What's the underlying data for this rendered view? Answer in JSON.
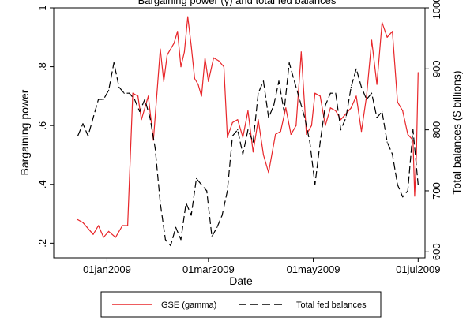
{
  "chart_data": {
    "type": "line",
    "title": "Bargaining power (γ) and total fed balances",
    "xlabel": "Date",
    "ylabel_left": "Bargaining power",
    "ylabel_right": "Total balances ($ billions)",
    "x_ticks": [
      {
        "date": "2009-01-01",
        "label": "01jan2009"
      },
      {
        "date": "2009-03-01",
        "label": "01mar2009"
      },
      {
        "date": "2009-05-01",
        "label": "01may2009"
      },
      {
        "date": "2009-07-01",
        "label": "01jul2009"
      }
    ],
    "x_range": [
      "2008-12-01",
      "2009-07-05"
    ],
    "y_left": {
      "min": 0.15,
      "max": 1.0,
      "ticks": [
        0.2,
        0.4,
        0.6,
        0.8,
        1.0
      ],
      "tick_labels": [
        ".2",
        ".4",
        ".6",
        ".8",
        "1"
      ]
    },
    "y_right": {
      "min": 590,
      "max": 1000,
      "ticks": [
        600,
        700,
        800,
        900,
        1000
      ],
      "tick_labels": [
        "600",
        "700",
        "800",
        "900",
        "1000"
      ]
    },
    "legend_position": "bottom",
    "series": [
      {
        "name": "GSE (gamma)",
        "axis": "left",
        "color": "#e8262a",
        "style": "solid",
        "x": [
          "2008-12-15",
          "2008-12-18",
          "2008-12-21",
          "2008-12-24",
          "2008-12-27",
          "2008-12-30",
          "2009-01-02",
          "2009-01-06",
          "2009-01-10",
          "2009-01-13",
          "2009-01-16",
          "2009-01-19",
          "2009-01-21",
          "2009-01-25",
          "2009-01-28",
          "2009-02-01",
          "2009-02-03",
          "2009-02-05",
          "2009-02-07",
          "2009-02-09",
          "2009-02-11",
          "2009-02-13",
          "2009-02-15",
          "2009-02-17",
          "2009-02-19",
          "2009-02-21",
          "2009-02-23",
          "2009-02-25",
          "2009-02-27",
          "2009-03-01",
          "2009-03-04",
          "2009-03-07",
          "2009-03-10",
          "2009-03-12",
          "2009-03-15",
          "2009-03-18",
          "2009-03-21",
          "2009-03-24",
          "2009-03-27",
          "2009-03-30",
          "2009-04-02",
          "2009-04-05",
          "2009-04-09",
          "2009-04-12",
          "2009-04-15",
          "2009-04-18",
          "2009-04-21",
          "2009-04-24",
          "2009-04-27",
          "2009-04-30",
          "2009-05-02",
          "2009-05-05",
          "2009-05-08",
          "2009-05-11",
          "2009-05-14",
          "2009-05-17",
          "2009-05-20",
          "2009-05-23",
          "2009-05-26",
          "2009-05-29",
          "2009-06-01",
          "2009-06-04",
          "2009-06-07",
          "2009-06-10",
          "2009-06-13",
          "2009-06-16",
          "2009-06-19",
          "2009-06-22",
          "2009-06-25",
          "2009-06-28",
          "2009-06-29",
          "2009-06-30",
          "2009-07-01"
        ],
        "values": [
          0.28,
          0.27,
          0.25,
          0.23,
          0.26,
          0.22,
          0.24,
          0.22,
          0.26,
          0.26,
          0.71,
          0.7,
          0.62,
          0.7,
          0.55,
          0.86,
          0.75,
          0.84,
          0.86,
          0.88,
          0.92,
          0.8,
          0.85,
          0.97,
          0.87,
          0.76,
          0.74,
          0.7,
          0.83,
          0.75,
          0.83,
          0.82,
          0.8,
          0.56,
          0.61,
          0.62,
          0.56,
          0.65,
          0.51,
          0.62,
          0.5,
          0.44,
          0.57,
          0.58,
          0.66,
          0.57,
          0.6,
          0.85,
          0.57,
          0.6,
          0.71,
          0.7,
          0.6,
          0.66,
          0.65,
          0.62,
          0.64,
          0.66,
          0.7,
          0.58,
          0.7,
          0.89,
          0.74,
          0.95,
          0.9,
          0.92,
          0.68,
          0.65,
          0.57,
          0.55,
          0.36,
          0.5,
          0.78
        ]
      },
      {
        "name": "Total fed balances",
        "axis": "right",
        "color": "#000000",
        "style": "dashed",
        "x": [
          "2008-12-15",
          "2008-12-18",
          "2008-12-21",
          "2008-12-24",
          "2008-12-27",
          "2008-12-30",
          "2009-01-02",
          "2009-01-05",
          "2009-01-08",
          "2009-01-11",
          "2009-01-14",
          "2009-01-17",
          "2009-01-20",
          "2009-01-23",
          "2009-01-26",
          "2009-01-29",
          "2009-02-01",
          "2009-02-04",
          "2009-02-07",
          "2009-02-10",
          "2009-02-13",
          "2009-02-16",
          "2009-02-19",
          "2009-02-22",
          "2009-02-25",
          "2009-02-28",
          "2009-03-03",
          "2009-03-06",
          "2009-03-09",
          "2009-03-12",
          "2009-03-15",
          "2009-03-18",
          "2009-03-21",
          "2009-03-24",
          "2009-03-27",
          "2009-03-30",
          "2009-04-02",
          "2009-04-05",
          "2009-04-08",
          "2009-04-11",
          "2009-04-14",
          "2009-04-17",
          "2009-04-20",
          "2009-04-23",
          "2009-04-26",
          "2009-04-29",
          "2009-05-02",
          "2009-05-05",
          "2009-05-08",
          "2009-05-11",
          "2009-05-14",
          "2009-05-17",
          "2009-05-20",
          "2009-05-23",
          "2009-05-26",
          "2009-05-29",
          "2009-06-01",
          "2009-06-04",
          "2009-06-07",
          "2009-06-10",
          "2009-06-13",
          "2009-06-16",
          "2009-06-19",
          "2009-06-22",
          "2009-06-25",
          "2009-06-28",
          "2009-07-01"
        ],
        "values": [
          790,
          810,
          790,
          820,
          850,
          850,
          865,
          910,
          870,
          860,
          860,
          850,
          830,
          850,
          820,
          770,
          680,
          620,
          610,
          640,
          620,
          680,
          660,
          720,
          710,
          700,
          625,
          640,
          660,
          700,
          790,
          800,
          760,
          800,
          780,
          860,
          880,
          820,
          840,
          880,
          830,
          910,
          880,
          850,
          820,
          780,
          710,
          780,
          840,
          860,
          860,
          800,
          820,
          870,
          900,
          870,
          850,
          860,
          820,
          830,
          780,
          760,
          710,
          690,
          700,
          800,
          710
        ]
      }
    ]
  }
}
